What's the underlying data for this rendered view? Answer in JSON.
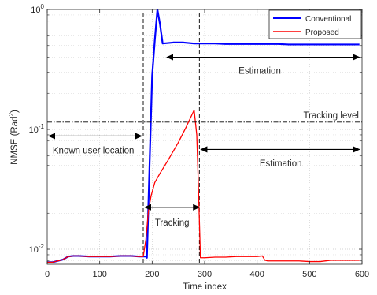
{
  "chart_data": {
    "type": "line",
    "xlabel": "Time index",
    "ylabel_main": "NMSE (Rad",
    "ylabel_sup": "2",
    "ylabel_tail": ")",
    "xlim": [
      0,
      600
    ],
    "ylim": [
      0.0075,
      1
    ],
    "yscale": "log",
    "grid": true,
    "legend_position": "top-right",
    "x_ticks": [
      0,
      100,
      200,
      300,
      400,
      500,
      600
    ],
    "y_ticks": [
      {
        "value": 0.01,
        "base": "10",
        "exp": "-2"
      },
      {
        "value": 0.1,
        "base": "10",
        "exp": "-1"
      },
      {
        "value": 1,
        "base": "10",
        "exp": "0"
      }
    ],
    "series": [
      {
        "name": "Conventional",
        "color": "#0000ff",
        "x": [
          0,
          10,
          20,
          30,
          40,
          50,
          60,
          80,
          100,
          120,
          140,
          160,
          175,
          188,
          190,
          195,
          200,
          205,
          210,
          215,
          220,
          240,
          260,
          280,
          300,
          320,
          340,
          360,
          380,
          400,
          420,
          440,
          460,
          480,
          500,
          520,
          540,
          560,
          580,
          595
        ],
        "y": [
          0.0078,
          0.0078,
          0.008,
          0.0082,
          0.0087,
          0.0088,
          0.0088,
          0.0087,
          0.0087,
          0.0087,
          0.0088,
          0.0088,
          0.0087,
          0.0087,
          0.0085,
          0.05,
          0.28,
          0.55,
          1.0,
          0.75,
          0.52,
          0.53,
          0.53,
          0.52,
          0.52,
          0.52,
          0.515,
          0.515,
          0.515,
          0.515,
          0.515,
          0.515,
          0.51,
          0.51,
          0.51,
          0.51,
          0.51,
          0.51,
          0.51,
          0.51
        ]
      },
      {
        "name": "Proposed",
        "color": "#ff0000",
        "x": [
          0,
          10,
          20,
          30,
          40,
          50,
          60,
          80,
          100,
          120,
          140,
          160,
          175,
          183,
          188,
          193,
          198,
          205,
          215,
          230,
          250,
          265,
          280,
          285,
          288,
          292,
          300,
          320,
          340,
          360,
          380,
          400,
          410,
          415,
          420,
          440,
          460,
          480,
          500,
          520,
          540,
          560,
          580,
          595
        ],
        "y": [
          0.0078,
          0.0078,
          0.008,
          0.0082,
          0.0087,
          0.0088,
          0.0088,
          0.0087,
          0.0087,
          0.0087,
          0.0088,
          0.0088,
          0.0087,
          0.0087,
          0.012,
          0.021,
          0.028,
          0.036,
          0.043,
          0.055,
          0.078,
          0.105,
          0.145,
          0.09,
          0.035,
          0.0085,
          0.0085,
          0.0086,
          0.0086,
          0.0087,
          0.0087,
          0.0087,
          0.0088,
          0.0081,
          0.008,
          0.008,
          0.008,
          0.008,
          0.0079,
          0.0079,
          0.0081,
          0.0081,
          0.0081,
          0.0081
        ]
      }
    ],
    "tracking_level": {
      "label": "Tracking level",
      "y": 0.115
    },
    "vertical_markers": [
      183,
      290
    ],
    "annotations": [
      {
        "text": "Estimation",
        "x1": 228,
        "x2": 595,
        "y": 0.4,
        "text_x": 405,
        "text_y": 0.31
      },
      {
        "text": "Known user location",
        "x1": 3,
        "x2": 180,
        "y": 0.088,
        "text_x": 88,
        "text_y": 0.067
      },
      {
        "text": "Estimation",
        "x1": 293,
        "x2": 595,
        "y": 0.068,
        "text_x": 445,
        "text_y": 0.052
      },
      {
        "text": "Tracking",
        "x1": 186,
        "x2": 290,
        "y": 0.0224,
        "text_x": 238,
        "text_y": 0.0168
      }
    ]
  }
}
